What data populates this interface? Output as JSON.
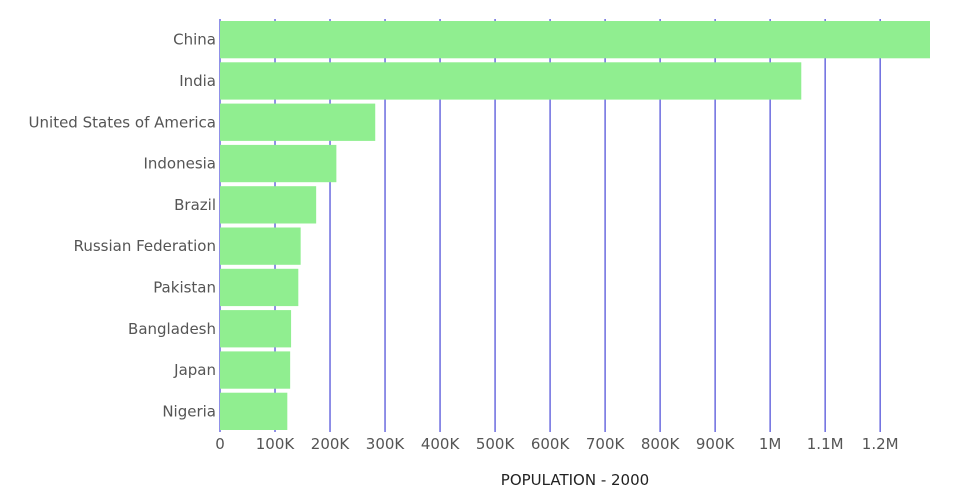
{
  "chart_data": {
    "type": "bar",
    "orientation": "horizontal",
    "title": "",
    "xlabel": "POPULATION - 2000",
    "ylabel": "",
    "categories": [
      "China",
      "India",
      "United States of America",
      "Indonesia",
      "Brazil",
      "Russian Federation",
      "Pakistan",
      "Bangladesh",
      "Japan",
      "Nigeria"
    ],
    "values": [
      1290550,
      1056576,
      282162,
      211514,
      174790,
      146597,
      142344,
      129193,
      127524,
      122352
    ],
    "xlim": [
      0,
      1290550
    ],
    "xticks": [
      0,
      100000,
      200000,
      300000,
      400000,
      500000,
      600000,
      700000,
      800000,
      900000,
      1000000,
      1100000,
      1200000
    ],
    "xtick_labels": [
      "0",
      "100K",
      "200K",
      "300K",
      "400K",
      "500K",
      "600K",
      "700K",
      "800K",
      "900K",
      "1M",
      "1.1M",
      "1.2M"
    ],
    "grid": "vertical",
    "legend": "none",
    "colors": {
      "bar": "#90ee90",
      "grid": "#6b6bdf",
      "label": "#555555",
      "axis_title": "#222222"
    }
  }
}
